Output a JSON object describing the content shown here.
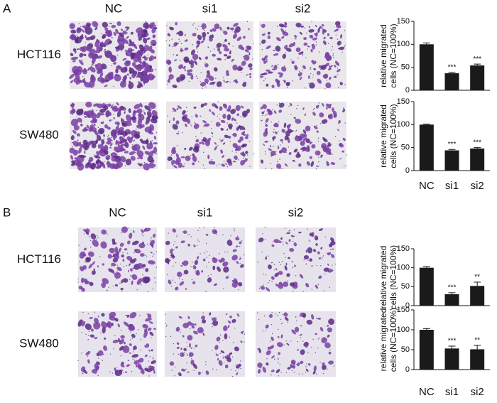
{
  "panels": [
    {
      "label": "A",
      "columns": [
        "NC",
        "si1",
        "si2"
      ],
      "rows": [
        "HCT116",
        "SW480"
      ]
    },
    {
      "label": "B",
      "columns": [
        "NC",
        "si1",
        "si2"
      ],
      "rows": [
        "HCT116",
        "SW480"
      ]
    }
  ],
  "chart_data": [
    {
      "type": "bar",
      "ylabel": [
        "relative migrated",
        "cells (NC=100%)"
      ],
      "categories": [
        null,
        null,
        null
      ],
      "values": [
        100,
        37,
        54
      ],
      "errors": [
        3,
        2,
        3
      ],
      "annotations": [
        null,
        "***",
        "***"
      ],
      "color": "#1a1a1a",
      "ylim": [
        0,
        150
      ],
      "yticks": [
        0,
        50,
        100,
        150
      ]
    },
    {
      "type": "bar",
      "ylabel": [
        "relative migrated",
        "cells (NC=100%)"
      ],
      "categories": [
        "NC",
        "si1",
        "si2"
      ],
      "values": [
        100,
        44,
        48
      ],
      "errors": [
        1,
        2,
        2
      ],
      "annotations": [
        null,
        "***",
        "***"
      ],
      "color": "#1a1a1a",
      "ylim": [
        0,
        150
      ],
      "yticks": [
        0,
        50,
        100,
        150
      ]
    },
    {
      "type": "bar",
      "ylabel": [
        "relative migrated",
        "cells (NC=100%)"
      ],
      "categories": [
        null,
        null,
        null
      ],
      "values": [
        100,
        30,
        52
      ],
      "errors": [
        3,
        4,
        10
      ],
      "annotations": [
        null,
        "***",
        "**"
      ],
      "color": "#1a1a1a",
      "ylim": [
        0,
        150
      ],
      "yticks": [
        0,
        50,
        100,
        150
      ]
    },
    {
      "type": "bar",
      "ylabel": [
        "relative migrated",
        "cells (NC=100%)"
      ],
      "categories": [
        "NC",
        "si1",
        "si2"
      ],
      "values": [
        100,
        53,
        51
      ],
      "errors": [
        3,
        6,
        10
      ],
      "annotations": [
        null,
        "***",
        "**"
      ],
      "color": "#1a1a1a",
      "ylim": [
        0,
        150
      ],
      "yticks": [
        0,
        50,
        100,
        150
      ]
    }
  ]
}
